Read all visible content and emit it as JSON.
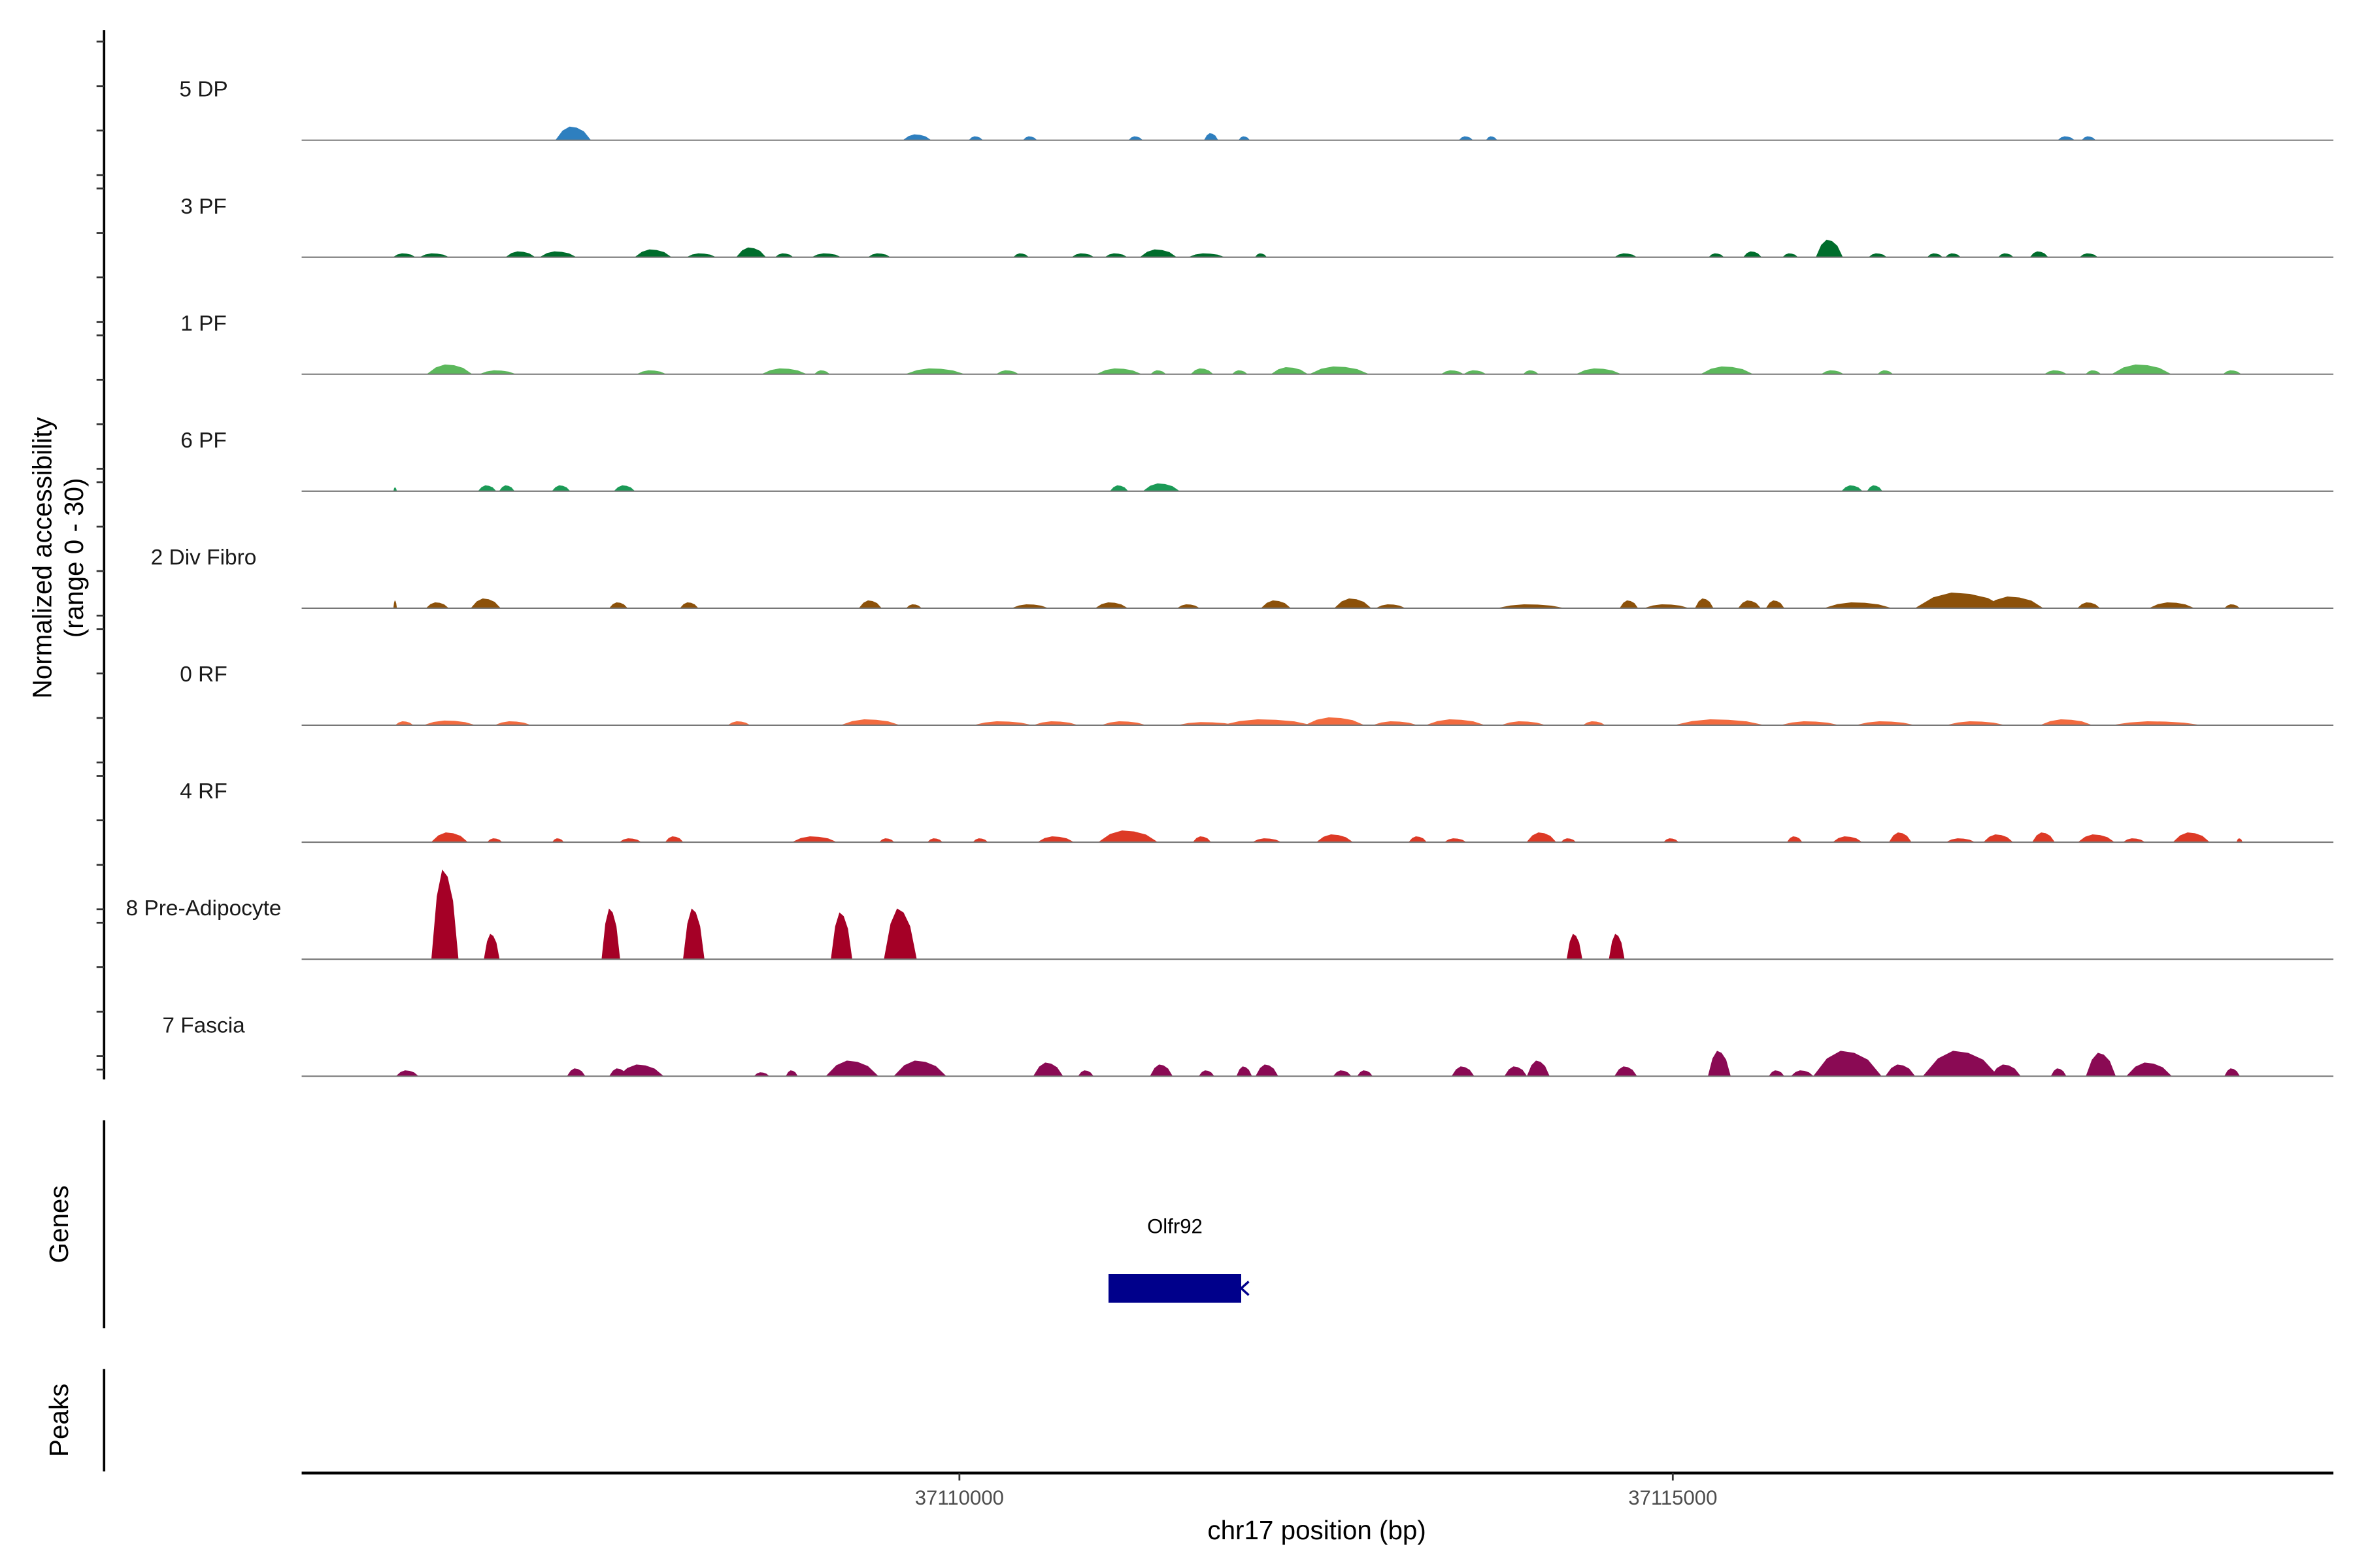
{
  "chart_data": {
    "type": "area",
    "title": "",
    "xlabel": "chr17 position (bp)",
    "ylabel": "Normalized accessibility",
    "ylabel_sub": "(range 0 - 30)",
    "ylim": [
      0,
      30
    ],
    "xlim": [
      37105390,
      37119630
    ],
    "x_ticks": [
      37110000,
      37115000
    ],
    "x_tick_labels": [
      "37110000",
      "37115000"
    ],
    "grid": false,
    "peak_format": [
      "center_bp",
      "width_bp",
      "height"
    ],
    "tracks": [
      {
        "name": "5 DP",
        "color": "#2e7fbf",
        "peaks": [
          [
            37107293,
            250,
            3.5
          ],
          [
            37109703,
            200,
            1.5
          ],
          [
            37110115,
            100,
            1
          ],
          [
            37110495,
            100,
            1
          ],
          [
            37111235,
            100,
            1
          ],
          [
            37111764,
            100,
            1.8
          ],
          [
            37111996,
            80,
            1
          ],
          [
            37113550,
            100,
            1
          ],
          [
            37113730,
            80,
            1
          ],
          [
            37117757,
            120,
            1
          ],
          [
            37117915,
            100,
            1
          ]
        ]
      },
      {
        "name": "3 PF",
        "color": "#006d2c",
        "peaks": [
          [
            37106109,
            160,
            1
          ],
          [
            37106320,
            210,
            1
          ],
          [
            37106923,
            210,
            1.5
          ],
          [
            37107187,
            260,
            1.5
          ],
          [
            37107853,
            260,
            2
          ],
          [
            37108191,
            210,
            1
          ],
          [
            37108540,
            210,
            2.5
          ],
          [
            37108772,
            130,
            1
          ],
          [
            37109068,
            210,
            1
          ],
          [
            37109438,
            160,
            1
          ],
          [
            37110432,
            110,
            1
          ],
          [
            37110865,
            160,
            1
          ],
          [
            37111098,
            160,
            1
          ],
          [
            37111394,
            260,
            2
          ],
          [
            37111732,
            260,
            1
          ],
          [
            37112113,
            85,
            1
          ],
          [
            37114670,
            160,
            1
          ],
          [
            37115305,
            110,
            1
          ],
          [
            37115558,
            130,
            1.5
          ],
          [
            37115823,
            110,
            1
          ],
          [
            37116097,
            190,
            4.5
          ],
          [
            37116436,
            130,
            1
          ],
          [
            37116837,
            110,
            1
          ],
          [
            37116964,
            110,
            1
          ],
          [
            37117334,
            110,
            1
          ],
          [
            37117567,
            130,
            1.5
          ],
          [
            37117915,
            130,
            1
          ]
        ]
      },
      {
        "name": "1 PF",
        "color": "#5cb85c",
        "peaks": [
          [
            37106426,
            320,
            2.5
          ],
          [
            37106764,
            260,
            1
          ],
          [
            37107842,
            210,
            1
          ],
          [
            37108772,
            320,
            1.5
          ],
          [
            37109037,
            110,
            1
          ],
          [
            37109829,
            420,
            1.5
          ],
          [
            37110337,
            160,
            1
          ],
          [
            37111119,
            320,
            1.5
          ],
          [
            37111394,
            110,
            1
          ],
          [
            37111700,
            160,
            1.5
          ],
          [
            37111965,
            110,
            1
          ],
          [
            37112313,
            260,
            1.8
          ],
          [
            37112662,
            420,
            2
          ],
          [
            37113455,
            160,
            1
          ],
          [
            37113613,
            160,
            1
          ],
          [
            37114005,
            110,
            1
          ],
          [
            37114480,
            320,
            1.5
          ],
          [
            37115379,
            370,
            2
          ],
          [
            37116119,
            160,
            1
          ],
          [
            37116489,
            110,
            1
          ],
          [
            37117683,
            160,
            1
          ],
          [
            37117947,
            110,
            1
          ],
          [
            37118285,
            420,
            2.5
          ],
          [
            37118920,
            130,
            1
          ]
        ]
      },
      {
        "name": "6 PF",
        "color": "#1b9a56",
        "peaks": [
          [
            37106045,
            25,
            1
          ],
          [
            37106690,
            130,
            1.5
          ],
          [
            37106828,
            110,
            1.5
          ],
          [
            37107208,
            130,
            1.5
          ],
          [
            37107652,
            150,
            1.5
          ],
          [
            37111119,
            130,
            1.5
          ],
          [
            37111415,
            260,
            2
          ],
          [
            37116256,
            150,
            1.5
          ],
          [
            37116415,
            110,
            1.5
          ]
        ]
      },
      {
        "name": "2 Div Fibro",
        "color": "#8c510a",
        "peaks": [
          [
            37106045,
            25,
            2
          ],
          [
            37106341,
            160,
            1.5
          ],
          [
            37106680,
            210,
            2.5
          ],
          [
            37107610,
            130,
            1.5
          ],
          [
            37108106,
            130,
            1.5
          ],
          [
            37109375,
            160,
            2
          ],
          [
            37109681,
            110,
            1
          ],
          [
            37110495,
            260,
            1
          ],
          [
            37111066,
            230,
            1.5
          ],
          [
            37111605,
            160,
            1
          ],
          [
            37112218,
            210,
            2
          ],
          [
            37112757,
            260,
            2.5
          ],
          [
            37113022,
            210,
            1
          ],
          [
            37114005,
            480,
            1
          ],
          [
            37114692,
            130,
            2
          ],
          [
            37114956,
            320,
            1
          ],
          [
            37115220,
            130,
            2.5
          ],
          [
            37115537,
            160,
            2
          ],
          [
            37115717,
            130,
            2
          ],
          [
            37116298,
            480,
            1.5
          ],
          [
            37117017,
            640,
            4
          ],
          [
            37117387,
            420,
            3
          ],
          [
            37117915,
            160,
            1.5
          ],
          [
            37118497,
            320,
            1.5
          ],
          [
            37118920,
            110,
            1
          ]
        ]
      },
      {
        "name": "0 RF",
        "color": "#f26b3f",
        "peaks": [
          [
            37106109,
            130,
            1
          ],
          [
            37106426,
            370,
            1.2
          ],
          [
            37106870,
            260,
            1
          ],
          [
            37108455,
            160,
            1
          ],
          [
            37109375,
            420,
            1.5
          ],
          [
            37110305,
            420,
            1
          ],
          [
            37110675,
            320,
            1
          ],
          [
            37111151,
            320,
            1
          ],
          [
            37111732,
            420,
            0.8
          ],
          [
            37112155,
            640,
            1.5
          ],
          [
            37112630,
            420,
            2
          ],
          [
            37113053,
            320,
            1
          ],
          [
            37113476,
            420,
            1.5
          ],
          [
            37113952,
            320,
            1
          ],
          [
            37114448,
            160,
            1
          ],
          [
            37115326,
            640,
            1.5
          ],
          [
            37115960,
            420,
            1
          ],
          [
            37116489,
            420,
            1
          ],
          [
            37117123,
            420,
            1
          ],
          [
            37117757,
            370,
            1.5
          ],
          [
            37118391,
            640,
            1
          ]
        ]
      },
      {
        "name": "4 RF",
        "color": "#dd3a26",
        "peaks": [
          [
            37106426,
            260,
            2.5
          ],
          [
            37106743,
            110,
            1
          ],
          [
            37107187,
            85,
            1
          ],
          [
            37107694,
            160,
            1
          ],
          [
            37108001,
            130,
            1.5
          ],
          [
            37108984,
            320,
            1.5
          ],
          [
            37109491,
            110,
            1
          ],
          [
            37109829,
            110,
            1
          ],
          [
            37110147,
            110,
            1
          ],
          [
            37110675,
            260,
            1.5
          ],
          [
            37111182,
            420,
            3
          ],
          [
            37111700,
            130,
            1.5
          ],
          [
            37112155,
            210,
            1
          ],
          [
            37112630,
            260,
            2
          ],
          [
            37113212,
            130,
            1.5
          ],
          [
            37113476,
            160,
            1
          ],
          [
            37114079,
            210,
            2.5
          ],
          [
            37114269,
            110,
            1
          ],
          [
            37114988,
            110,
            1
          ],
          [
            37115854,
            110,
            1.5
          ],
          [
            37116224,
            210,
            1.5
          ],
          [
            37116594,
            160,
            2.5
          ],
          [
            37117017,
            210,
            1
          ],
          [
            37117281,
            210,
            2
          ],
          [
            37117598,
            160,
            2.5
          ],
          [
            37117968,
            260,
            2
          ],
          [
            37118233,
            160,
            1
          ],
          [
            37118634,
            260,
            2.5
          ],
          [
            37118972,
            45,
            1
          ]
        ]
      },
      {
        "name": "8 Pre-Adipocyte",
        "color": "#a50026",
        "peaks": [
          [
            37106394,
            190,
            23
          ],
          [
            37106722,
            110,
            6.5
          ],
          [
            37107557,
            130,
            13
          ],
          [
            37108138,
            150,
            13
          ],
          [
            37109174,
            150,
            12
          ],
          [
            37109586,
            230,
            13
          ],
          [
            37114311,
            110,
            6.5
          ],
          [
            37114607,
            110,
            6.5
          ]
        ]
      },
      {
        "name": "7 Fascia",
        "color": "#8a0a54",
        "peaks": [
          [
            37106130,
            160,
            1.5
          ],
          [
            37107314,
            130,
            2
          ],
          [
            37107610,
            130,
            2
          ],
          [
            37107768,
            320,
            3
          ],
          [
            37108614,
            110,
            1
          ],
          [
            37108825,
            85,
            1.5
          ],
          [
            37109248,
            370,
            4
          ],
          [
            37109724,
            370,
            4
          ],
          [
            37110622,
            210,
            3.5
          ],
          [
            37110886,
            110,
            1.5
          ],
          [
            37111415,
            160,
            3
          ],
          [
            37111732,
            110,
            1.5
          ],
          [
            37111996,
            110,
            2.5
          ],
          [
            37112155,
            160,
            3
          ],
          [
            37112683,
            130,
            1.5
          ],
          [
            37112842,
            110,
            1.5
          ],
          [
            37113529,
            160,
            2.5
          ],
          [
            37113899,
            160,
            2.5
          ],
          [
            37114057,
            160,
            4
          ],
          [
            37114670,
            160,
            2.5
          ],
          [
            37115326,
            160,
            6.5
          ],
          [
            37115727,
            110,
            1.5
          ],
          [
            37115907,
            160,
            1.5
          ],
          [
            37116224,
            480,
            6.5
          ],
          [
            37116594,
            210,
            3
          ],
          [
            37117017,
            530,
            6.5
          ],
          [
            37117334,
            210,
            3
          ],
          [
            37117704,
            110,
            2
          ],
          [
            37118000,
            210,
            6
          ],
          [
            37118338,
            320,
            3.5
          ],
          [
            37118920,
            110,
            2
          ]
        ]
      }
    ],
    "genes_track": {
      "label": "Genes",
      "genes": [
        {
          "name": "Olfr92",
          "start": 37111045,
          "end": 37111975,
          "strand": "-",
          "color": "#00008b"
        }
      ]
    },
    "peaks_track": {
      "label": "Peaks",
      "peaks": []
    }
  }
}
